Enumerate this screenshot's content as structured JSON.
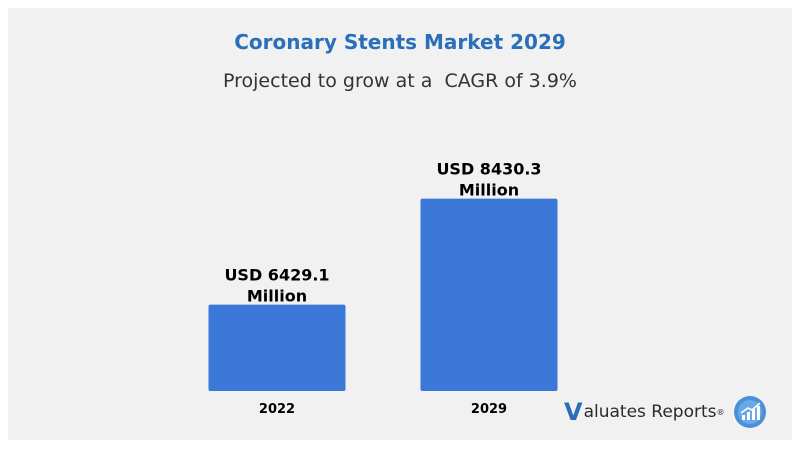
{
  "chart_data": {
    "type": "bar",
    "title": "Coronary Stents Market 2029",
    "subtitle": "Projected to grow at a  CAGR of 3.9%",
    "categories": [
      "2022",
      "2029"
    ],
    "values": [
      6429.1,
      8430.3
    ],
    "data_labels": [
      [
        "USD 6429.1",
        "Million"
      ],
      [
        "USD 8430.3",
        "Million"
      ]
    ],
    "ylim": [
      4800,
      8800
    ],
    "grid": false,
    "legend": "none"
  },
  "colors": {
    "bar": "#3c78d8",
    "title": "#2a6fb8",
    "background": "#f1f1f1"
  },
  "brand": {
    "initial": "V",
    "text": "aluates Reports",
    "registered": "®",
    "icon": "chart-growth-icon"
  }
}
